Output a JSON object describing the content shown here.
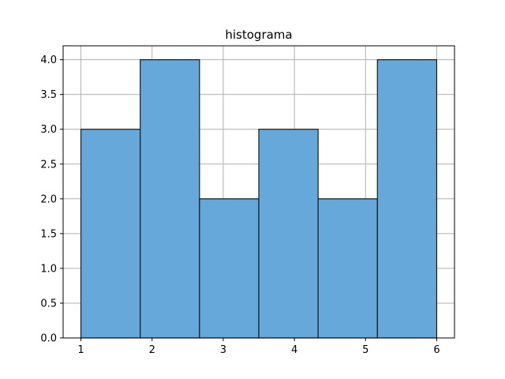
{
  "chart_data": {
    "type": "bar",
    "title": "histograma",
    "xlabel": "",
    "ylabel": "",
    "bins": [
      {
        "x0": 1.0,
        "x1": 1.8333,
        "count": 3
      },
      {
        "x0": 1.8333,
        "x1": 2.6667,
        "count": 4
      },
      {
        "x0": 2.6667,
        "x1": 3.5,
        "count": 2
      },
      {
        "x0": 3.5,
        "x1": 4.3333,
        "count": 3
      },
      {
        "x0": 4.3333,
        "x1": 5.1667,
        "count": 2
      },
      {
        "x0": 5.1667,
        "x1": 6.0,
        "count": 4
      }
    ],
    "xlim": [
      0.75,
      6.25
    ],
    "ylim": [
      0,
      4.2
    ],
    "xticks": [
      1,
      2,
      3,
      4,
      5,
      6
    ],
    "xtick_labels": [
      "1",
      "2",
      "3",
      "4",
      "5",
      "6"
    ],
    "yticks": [
      0,
      0.5,
      1.0,
      1.5,
      2.0,
      2.5,
      3.0,
      3.5,
      4.0
    ],
    "ytick_labels": [
      "0.0",
      "0.5",
      "1.0",
      "1.5",
      "2.0",
      "2.5",
      "3.0",
      "3.5",
      "4.0"
    ],
    "grid": true,
    "colors": {
      "bar_fill": "#66a8da",
      "bar_edge": "#1a1a1a",
      "grid": "#b0b0b0",
      "axes": "#000000"
    }
  }
}
